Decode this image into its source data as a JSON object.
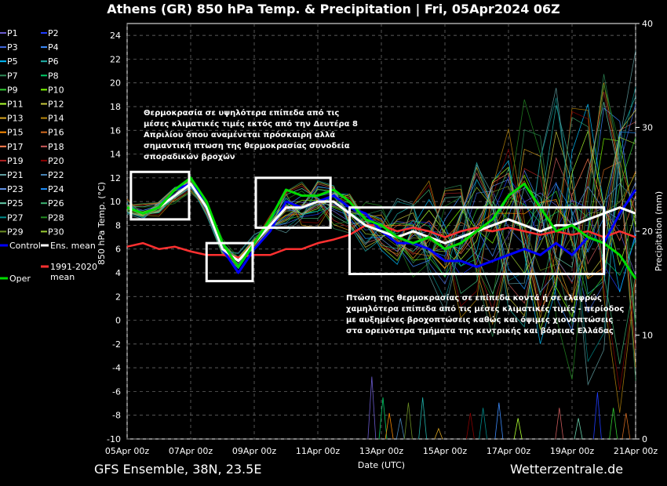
{
  "title": "Athens  (GR)  850 hPa Temp. & Precipitation | Fri, 05Apr2024 06Z",
  "footer": {
    "model": "GFS Ensemble, 38N, 23.5E",
    "source": "Wetterzentrale.de"
  },
  "colors": {
    "control": "#0000ff",
    "ens_mean": "#ffffff",
    "climate_mean": "#ff3030",
    "oper": "#00dd00"
  },
  "chart_data": {
    "type": "line",
    "xlabel": "Date (UTC)",
    "ylabel": "850 hPa Temp. (°C)",
    "y2label": "Precipitation (mm)",
    "x_range": [
      "2024-04-05T00",
      "2024-04-21T00"
    ],
    "ylim": [
      -10,
      25
    ],
    "y2lim": [
      0,
      40
    ],
    "yticks": [
      "24",
      "22",
      "20",
      "18",
      "16",
      "14",
      "12",
      "10",
      "8",
      "6",
      "4",
      "2",
      "0",
      "-2",
      "-4",
      "-6",
      "-8",
      "-10"
    ],
    "y2ticks": [
      "40",
      "30",
      "20",
      "10",
      "0"
    ],
    "xticks": [
      "05Apr 00z",
      "07Apr 00z",
      "09Apr 00z",
      "11Apr 00z",
      "13Apr 00z",
      "15Apr 00z",
      "17Apr 00z",
      "19Apr 00z",
      "21Apr 00z"
    ],
    "grid": true,
    "legend_position": "left",
    "legend": [
      {
        "name": "P1",
        "color": "#6a5acd"
      },
      {
        "name": "P2",
        "color": "#1e3cff"
      },
      {
        "name": "P3",
        "color": "#4169e1"
      },
      {
        "name": "P4",
        "color": "#3c8cff"
      },
      {
        "name": "P5",
        "color": "#00bfff"
      },
      {
        "name": "P6",
        "color": "#20b2aa"
      },
      {
        "name": "P7",
        "color": "#2e8b57"
      },
      {
        "name": "P8",
        "color": "#00cc66"
      },
      {
        "name": "P9",
        "color": "#32cd32"
      },
      {
        "name": "P10",
        "color": "#7cfc00"
      },
      {
        "name": "P11",
        "color": "#adff2f"
      },
      {
        "name": "P12",
        "color": "#c8c83c"
      },
      {
        "name": "P13",
        "color": "#daa520"
      },
      {
        "name": "P14",
        "color": "#b8860b"
      },
      {
        "name": "P15",
        "color": "#ff8c00"
      },
      {
        "name": "P16",
        "color": "#d2691e"
      },
      {
        "name": "P17",
        "color": "#ff7f50"
      },
      {
        "name": "P18",
        "color": "#cd5c5c"
      },
      {
        "name": "P19",
        "color": "#b22222"
      },
      {
        "name": "P20",
        "color": "#8b0000"
      },
      {
        "name": "P21",
        "color": "#5f9ea0"
      },
      {
        "name": "P22",
        "color": "#4682b4"
      },
      {
        "name": "P23",
        "color": "#6495ed"
      },
      {
        "name": "P24",
        "color": "#1e90ff"
      },
      {
        "name": "P25",
        "color": "#66cdaa"
      },
      {
        "name": "P26",
        "color": "#3cb371"
      },
      {
        "name": "P27",
        "color": "#008b8b"
      },
      {
        "name": "P28",
        "color": "#228b22"
      },
      {
        "name": "P29",
        "color": "#6b8e23"
      },
      {
        "name": "P30",
        "color": "#9acd32"
      },
      {
        "name": "Control",
        "color": "#0000ff"
      },
      {
        "name": "Ens. mean",
        "color": "#ffffff"
      },
      {
        "name": "1991-2020 mean",
        "color": "#ff3030"
      },
      {
        "name": "Oper",
        "color": "#00dd00"
      }
    ],
    "series": [
      {
        "name": "Control",
        "values": [
          [
            0,
            9.5
          ],
          [
            0.5,
            9
          ],
          [
            1,
            9.5
          ],
          [
            1.5,
            11
          ],
          [
            2,
            11.5
          ],
          [
            2.5,
            10
          ],
          [
            3,
            6
          ],
          [
            3.5,
            4
          ],
          [
            4,
            6
          ],
          [
            4.5,
            7.5
          ],
          [
            5,
            10
          ],
          [
            5.5,
            9.5
          ],
          [
            6,
            10
          ],
          [
            6.5,
            10.5
          ],
          [
            7,
            9.5
          ],
          [
            7.5,
            9
          ],
          [
            8,
            7.5
          ],
          [
            8.5,
            6.5
          ],
          [
            9,
            6.5
          ],
          [
            9.5,
            6
          ],
          [
            10,
            5
          ],
          [
            10.5,
            5
          ],
          [
            11,
            4.5
          ],
          [
            11.5,
            5
          ],
          [
            12,
            5.5
          ],
          [
            12.5,
            6
          ],
          [
            13,
            5.5
          ],
          [
            13.5,
            6.5
          ],
          [
            14,
            5.5
          ],
          [
            14.5,
            7
          ],
          [
            15,
            6.5
          ],
          [
            15.5,
            9
          ],
          [
            16,
            11
          ]
        ]
      },
      {
        "name": "Ens. mean",
        "values": [
          [
            0,
            9.5
          ],
          [
            0.5,
            9
          ],
          [
            1,
            9.5
          ],
          [
            1.5,
            10.5
          ],
          [
            2,
            11.5
          ],
          [
            2.5,
            9.5
          ],
          [
            3,
            6
          ],
          [
            3.5,
            5
          ],
          [
            4,
            6.5
          ],
          [
            4.5,
            8
          ],
          [
            5,
            9.5
          ],
          [
            5.5,
            9.5
          ],
          [
            6,
            10
          ],
          [
            6.5,
            10
          ],
          [
            7,
            9
          ],
          [
            7.5,
            8
          ],
          [
            8,
            7.5
          ],
          [
            8.5,
            7
          ],
          [
            9,
            7.5
          ],
          [
            9.5,
            7
          ],
          [
            10,
            6.5
          ],
          [
            10.5,
            7
          ],
          [
            11,
            7.5
          ],
          [
            11.5,
            8
          ],
          [
            12,
            8.5
          ],
          [
            12.5,
            8
          ],
          [
            13,
            7.5
          ],
          [
            13.5,
            8
          ],
          [
            14,
            8
          ],
          [
            14.5,
            8.5
          ],
          [
            15,
            9
          ],
          [
            15.5,
            9.5
          ],
          [
            16,
            9
          ]
        ]
      },
      {
        "name": "1991-2020 mean",
        "values": [
          [
            0,
            6.2
          ],
          [
            0.5,
            6.5
          ],
          [
            1,
            6
          ],
          [
            1.5,
            6.2
          ],
          [
            2,
            5.8
          ],
          [
            2.5,
            5.5
          ],
          [
            3,
            5.5
          ],
          [
            3.5,
            5.3
          ],
          [
            4,
            5.5
          ],
          [
            4.5,
            5.5
          ],
          [
            5,
            6
          ],
          [
            5.5,
            6
          ],
          [
            6,
            6.5
          ],
          [
            6.5,
            6.8
          ],
          [
            7,
            7.2
          ],
          [
            7.5,
            8
          ],
          [
            8,
            8
          ],
          [
            8.5,
            7.5
          ],
          [
            9,
            7.8
          ],
          [
            9.5,
            7.5
          ],
          [
            10,
            7
          ],
          [
            10.5,
            7.5
          ],
          [
            11,
            7.8
          ],
          [
            11.5,
            7.5
          ],
          [
            12,
            7.8
          ],
          [
            12.5,
            7.5
          ],
          [
            13,
            7.2
          ],
          [
            13.5,
            7.5
          ],
          [
            14,
            7.2
          ],
          [
            14.5,
            7.5
          ],
          [
            15,
            7
          ],
          [
            15.5,
            7.5
          ],
          [
            16,
            7
          ]
        ]
      },
      {
        "name": "Oper",
        "values": [
          [
            0,
            9.5
          ],
          [
            0.5,
            9
          ],
          [
            1,
            9.5
          ],
          [
            1.5,
            11
          ],
          [
            2,
            12
          ],
          [
            2.5,
            10
          ],
          [
            3,
            6.5
          ],
          [
            3.5,
            4.5
          ],
          [
            4,
            6.5
          ],
          [
            4.5,
            8.5
          ],
          [
            5,
            11
          ],
          [
            5.5,
            10.5
          ],
          [
            6,
            10.5
          ],
          [
            6.5,
            11
          ],
          [
            7,
            10
          ],
          [
            7.5,
            8.5
          ],
          [
            8,
            8
          ],
          [
            8.5,
            7
          ],
          [
            9,
            6.5
          ],
          [
            9.5,
            7
          ],
          [
            10,
            6
          ],
          [
            10.5,
            6.5
          ],
          [
            11,
            7.5
          ],
          [
            11.5,
            8.5
          ],
          [
            12,
            10.5
          ],
          [
            12.5,
            11.5
          ],
          [
            13,
            9.5
          ],
          [
            13.5,
            7.5
          ],
          [
            14,
            8
          ],
          [
            14.5,
            7
          ],
          [
            15,
            6.5
          ],
          [
            15.5,
            5.5
          ],
          [
            16,
            3.5
          ]
        ]
      }
    ],
    "annotations": [
      {
        "lines": [
          "Θερμοκρασία σε υψηλότερα επίπεδα από τις",
          "μέσες κλιματικές τιμές εκτός από την Δευτέρα 8",
          "Απριλίου όπου αναμένεται πρόσκαιρη αλλά",
          "σημαντική πτωση της θερμοκρασίας συνοδεία",
          "σποραδικών βροχών"
        ]
      },
      {
        "lines": [
          "Πτώση της θερμοκρασίας σε επίπεδα κοντά ή σε ελαφρώς",
          "χαμηλότερα επίπεδα από τις μέσες κλιματικές τιμές - περίοδος",
          "με αυξημένες βροχοπτώσεις καθώς και όψιμες χιονοπτώσεις",
          "στα ορεινότερα τμήματα της κεντρικής και βόρειας Ελλάδας"
        ]
      }
    ]
  }
}
